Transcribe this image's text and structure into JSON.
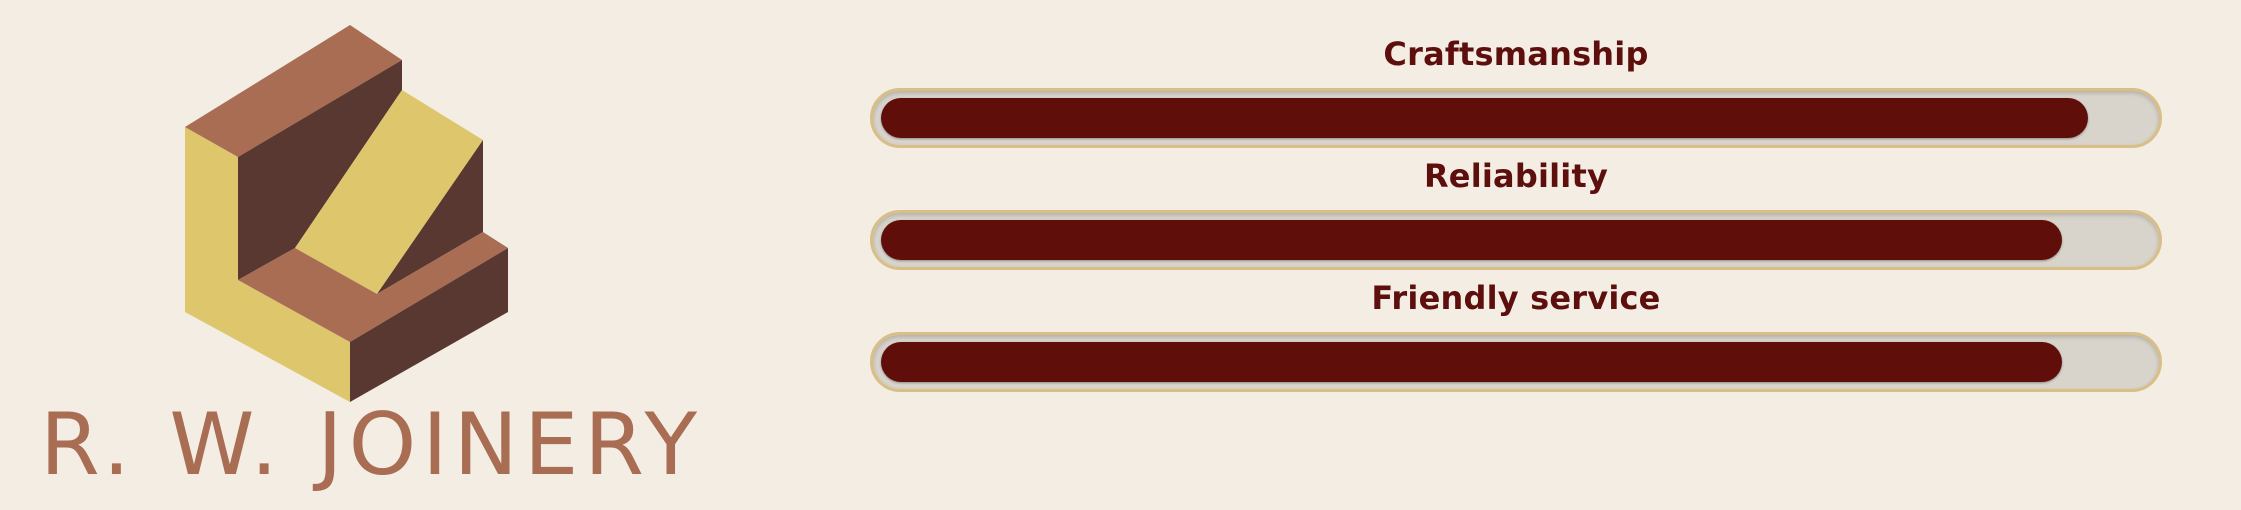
{
  "brand": {
    "name": "R. W. JOINERY",
    "logo_icon": "stair-block-icon"
  },
  "skills": [
    {
      "label": "Craftsmanship",
      "level": 0.95
    },
    {
      "label": "Reliability",
      "level": 0.93
    },
    {
      "label": "Friendly service",
      "level": 0.93
    }
  ],
  "colors": {
    "background": "#f3ede4",
    "label_text": "#5c0f0c",
    "bar_fill": "#600e0a",
    "bar_track": "#d8d4cc",
    "bar_border": "#d9be86",
    "brand_text": "#a86d52",
    "logo_light_wood": "#a86d52",
    "logo_dark_wood": "#5a3832",
    "logo_yellow": "#dec66c"
  }
}
